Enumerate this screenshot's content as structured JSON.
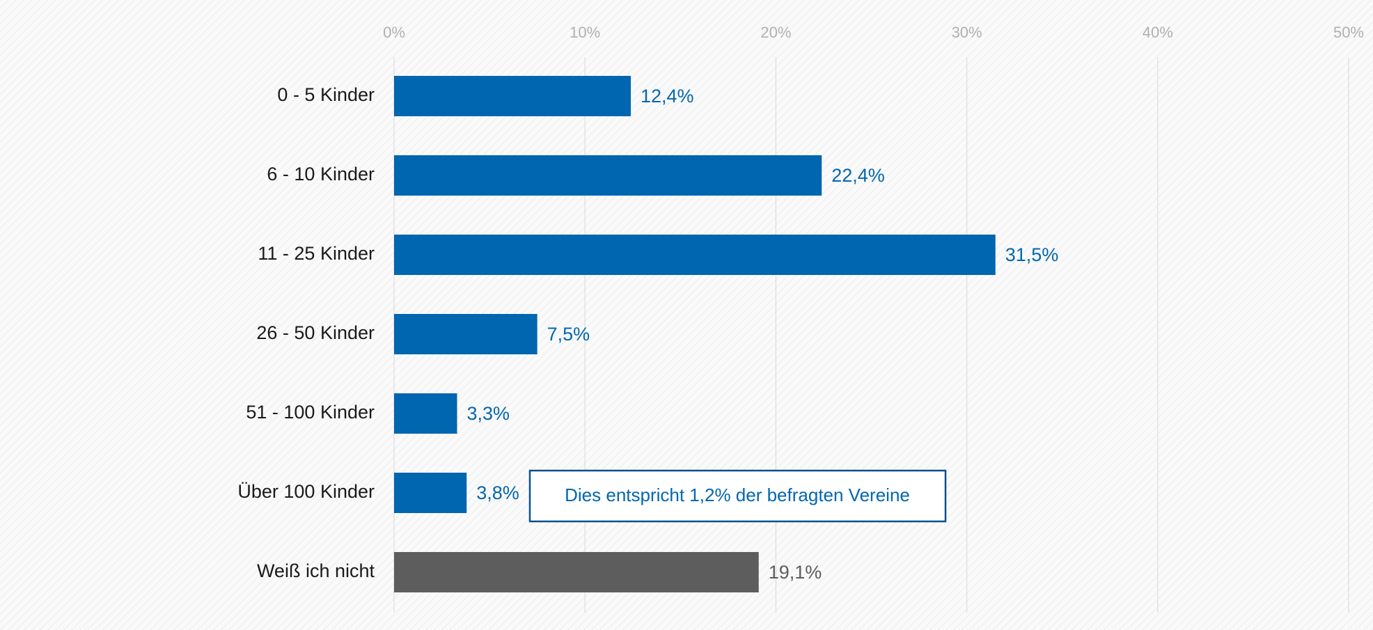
{
  "chart_data": {
    "type": "hbar",
    "categories": [
      "0 - 5 Kinder",
      "6 - 10 Kinder",
      "11 - 25 Kinder",
      "26 - 50 Kinder",
      "51 - 100 Kinder",
      "Über 100 Kinder",
      "Weiß ich nicht"
    ],
    "values": [
      12.4,
      22.4,
      31.5,
      7.5,
      3.3,
      3.8,
      19.1
    ],
    "value_labels": [
      "12,4%",
      "22,4%",
      "31,5%",
      "7,5%",
      "3,3%",
      "3,8%",
      "19,1%"
    ],
    "colors": [
      "#0066b0",
      "#0066b0",
      "#0066b0",
      "#0066b0",
      "#0066b0",
      "#0066b0",
      "#5d5d5d"
    ],
    "xlim": [
      0,
      50
    ],
    "xticks": [
      {
        "value": 0,
        "label": "0%"
      },
      {
        "value": 10,
        "label": "10%"
      },
      {
        "value": 20,
        "label": "20%"
      },
      {
        "value": 30,
        "label": "30%"
      },
      {
        "value": 40,
        "label": "40%"
      },
      {
        "value": 50,
        "label": "50%"
      }
    ],
    "grid": true,
    "annotation": "Dies entspricht 1,2% der befragten Vereine"
  }
}
